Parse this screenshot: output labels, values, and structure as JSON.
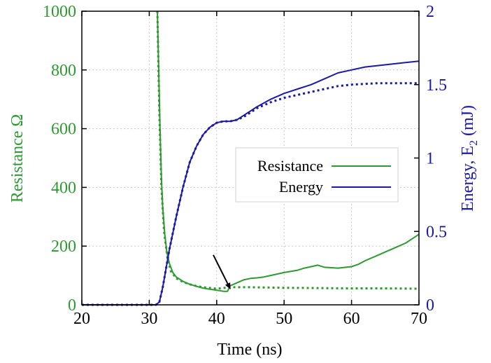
{
  "chart_data": {
    "type": "line",
    "xlabel": "Time (ns)",
    "ylabel_left": "Resistance Ω",
    "ylabel_right_main": "Energy, E",
    "ylabel_right_sub": "2",
    "ylabel_right_unit": " (mJ)",
    "xlim": [
      20,
      70
    ],
    "ylim_left": [
      0,
      1000
    ],
    "ylim_right": [
      0,
      2
    ],
    "x_ticks": [
      20,
      30,
      40,
      50,
      60,
      70
    ],
    "y_ticks_left": [
      0,
      200,
      400,
      600,
      800,
      1000
    ],
    "y_ticks_right": [
      0,
      0.5,
      1,
      1.5,
      2
    ],
    "grid": true,
    "legend": {
      "position": "center-right",
      "entries": [
        {
          "label": "Resistance",
          "color": "#2e9930"
        },
        {
          "label": "Energy",
          "color": "#1a1aa6"
        }
      ]
    },
    "colors": {
      "resistance": "#2e9930",
      "energy": "#1a1aa6",
      "grid": "#c8c8c8"
    },
    "series": [
      {
        "axis": "left",
        "style": "solid",
        "color": "#2e9930",
        "x": [
          31.2,
          31.4,
          31.6,
          31.8,
          32.0,
          32.3,
          32.6,
          33.0,
          33.5,
          34.0,
          35.0,
          36.0,
          37.0,
          38.0,
          39.0,
          40.0,
          41.0,
          41.6,
          42.0,
          43.0,
          44.0,
          45.0,
          46.0,
          47.0,
          48.0,
          50.0,
          52.0,
          53.0,
          54.0,
          55.0,
          56.0,
          58.0,
          60.0,
          61.0,
          62.0,
          63.0,
          64.0,
          65.0,
          66.0,
          67.0,
          68.0,
          69.0,
          70.0
        ],
        "y": [
          1000,
          800,
          600,
          430,
          330,
          240,
          180,
          140,
          110,
          95,
          80,
          70,
          63,
          57,
          53,
          50,
          46,
          46,
          65,
          75,
          85,
          90,
          92,
          95,
          100,
          110,
          118,
          125,
          130,
          135,
          128,
          125,
          130,
          138,
          150,
          160,
          170,
          180,
          190,
          200,
          210,
          225,
          240
        ]
      },
      {
        "axis": "left",
        "style": "dotted",
        "color": "#2e9930",
        "x": [
          31.2,
          31.5,
          31.8,
          32.2,
          32.7,
          33.2,
          34.0,
          35.0,
          36.0,
          37.0,
          38.0,
          40.0,
          42.0,
          45.0,
          50.0,
          55.0,
          60.0,
          65.0,
          70.0
        ],
        "y": [
          1000,
          650,
          400,
          250,
          160,
          115,
          90,
          78,
          70,
          64,
          60,
          55,
          60,
          60,
          58,
          57,
          56,
          56,
          55
        ]
      },
      {
        "axis": "right",
        "style": "solid",
        "color": "#1a1aa6",
        "x": [
          20,
          25,
          30,
          31.0,
          31.5,
          32.0,
          32.5,
          33.0,
          34.0,
          35.0,
          36.0,
          37.0,
          38.0,
          39.0,
          40.0,
          41.0,
          42.0,
          43.0,
          44.0,
          45.0,
          46.0,
          48.0,
          50.0,
          52.0,
          54.0,
          56.0,
          58.0,
          60.0,
          62.0,
          64.0,
          66.0,
          68.0,
          70.0
        ],
        "y": [
          0,
          0,
          0,
          0,
          0.02,
          0.12,
          0.25,
          0.38,
          0.6,
          0.8,
          0.97,
          1.08,
          1.16,
          1.21,
          1.24,
          1.25,
          1.25,
          1.26,
          1.29,
          1.32,
          1.35,
          1.4,
          1.44,
          1.47,
          1.5,
          1.54,
          1.58,
          1.6,
          1.62,
          1.63,
          1.64,
          1.65,
          1.66
        ]
      },
      {
        "axis": "right",
        "style": "dotted",
        "color": "#1a1aa6",
        "x": [
          20,
          25,
          30,
          31.0,
          31.5,
          32.0,
          32.5,
          33.0,
          34.0,
          35.0,
          36.0,
          37.0,
          38.0,
          39.0,
          40.0,
          41.0,
          42.0,
          43.0,
          44.0,
          45.0,
          46.0,
          48.0,
          50.0,
          52.0,
          54.0,
          56.0,
          58.0,
          60.0,
          62.0,
          64.0,
          66.0,
          68.0,
          70.0
        ],
        "y": [
          0,
          0,
          0,
          0,
          0.02,
          0.12,
          0.25,
          0.38,
          0.6,
          0.8,
          0.97,
          1.08,
          1.16,
          1.21,
          1.24,
          1.25,
          1.25,
          1.26,
          1.28,
          1.31,
          1.34,
          1.38,
          1.41,
          1.43,
          1.45,
          1.47,
          1.49,
          1.5,
          1.505,
          1.51,
          1.51,
          1.51,
          1.51
        ]
      }
    ],
    "annotations": [
      {
        "type": "arrow",
        "from": [
          39.5,
          170
        ],
        "to": [
          42.0,
          55
        ]
      }
    ]
  }
}
